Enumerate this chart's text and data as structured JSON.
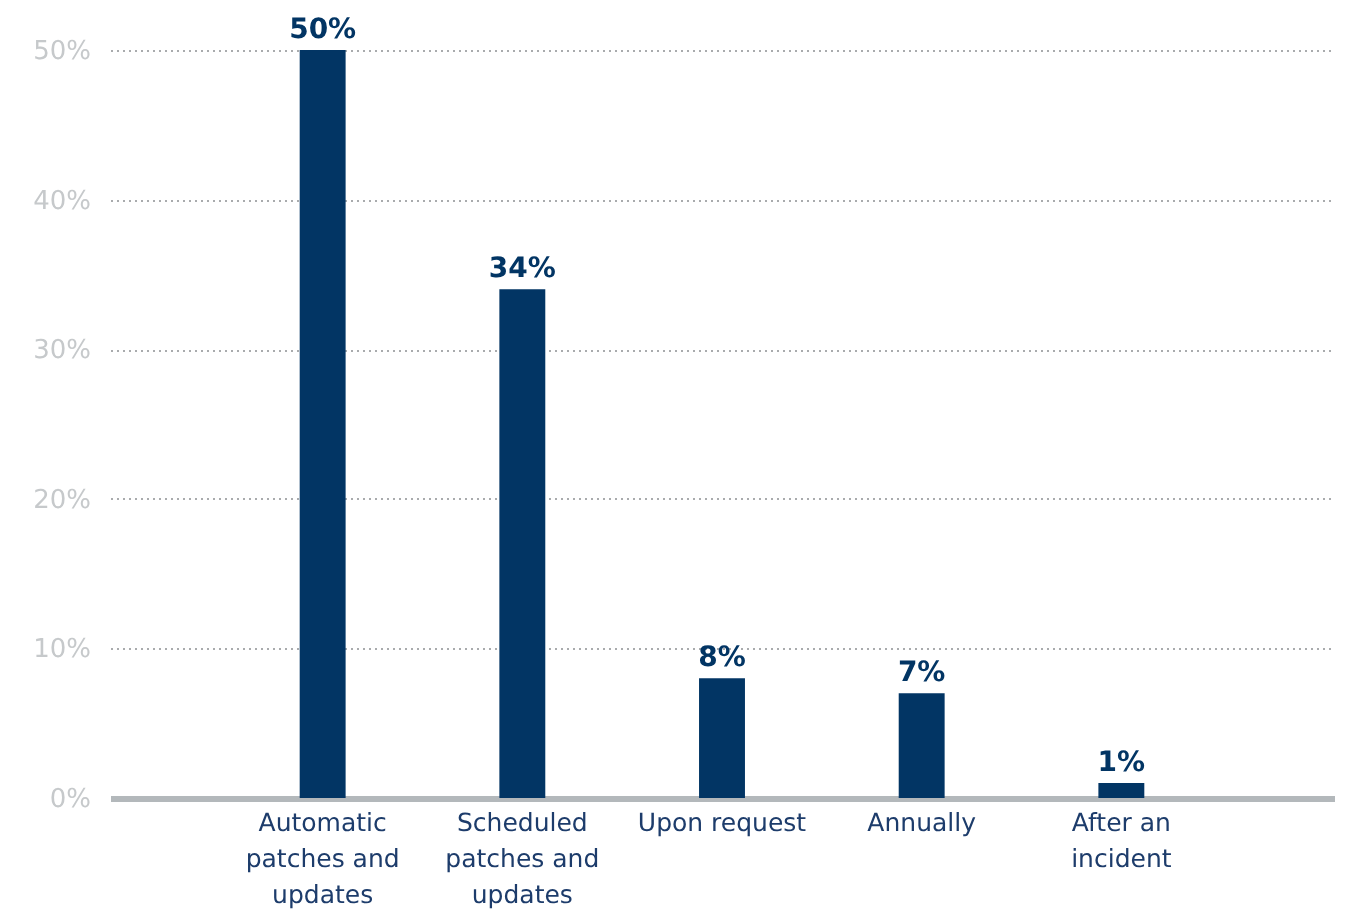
{
  "chart_data": {
    "type": "bar",
    "categories": [
      "Automatic patches and updates",
      "Scheduled patches and updates",
      "Upon request",
      "Annually",
      "After an incident"
    ],
    "values": [
      50,
      34,
      8,
      7,
      1
    ],
    "color": "#023564",
    "value_labels": [
      "50%",
      "34%",
      "8%",
      "7%",
      "1%"
    ],
    "ylim": [
      0,
      50
    ],
    "yticks": [
      {
        "value": 0,
        "label": "0%"
      },
      {
        "value": 10,
        "label": "10%"
      },
      {
        "value": 20,
        "label": "20%"
      },
      {
        "value": 30,
        "label": "30%"
      },
      {
        "value": 40,
        "label": "40%"
      },
      {
        "value": 50,
        "label": "50%"
      }
    ],
    "grid": "y"
  }
}
